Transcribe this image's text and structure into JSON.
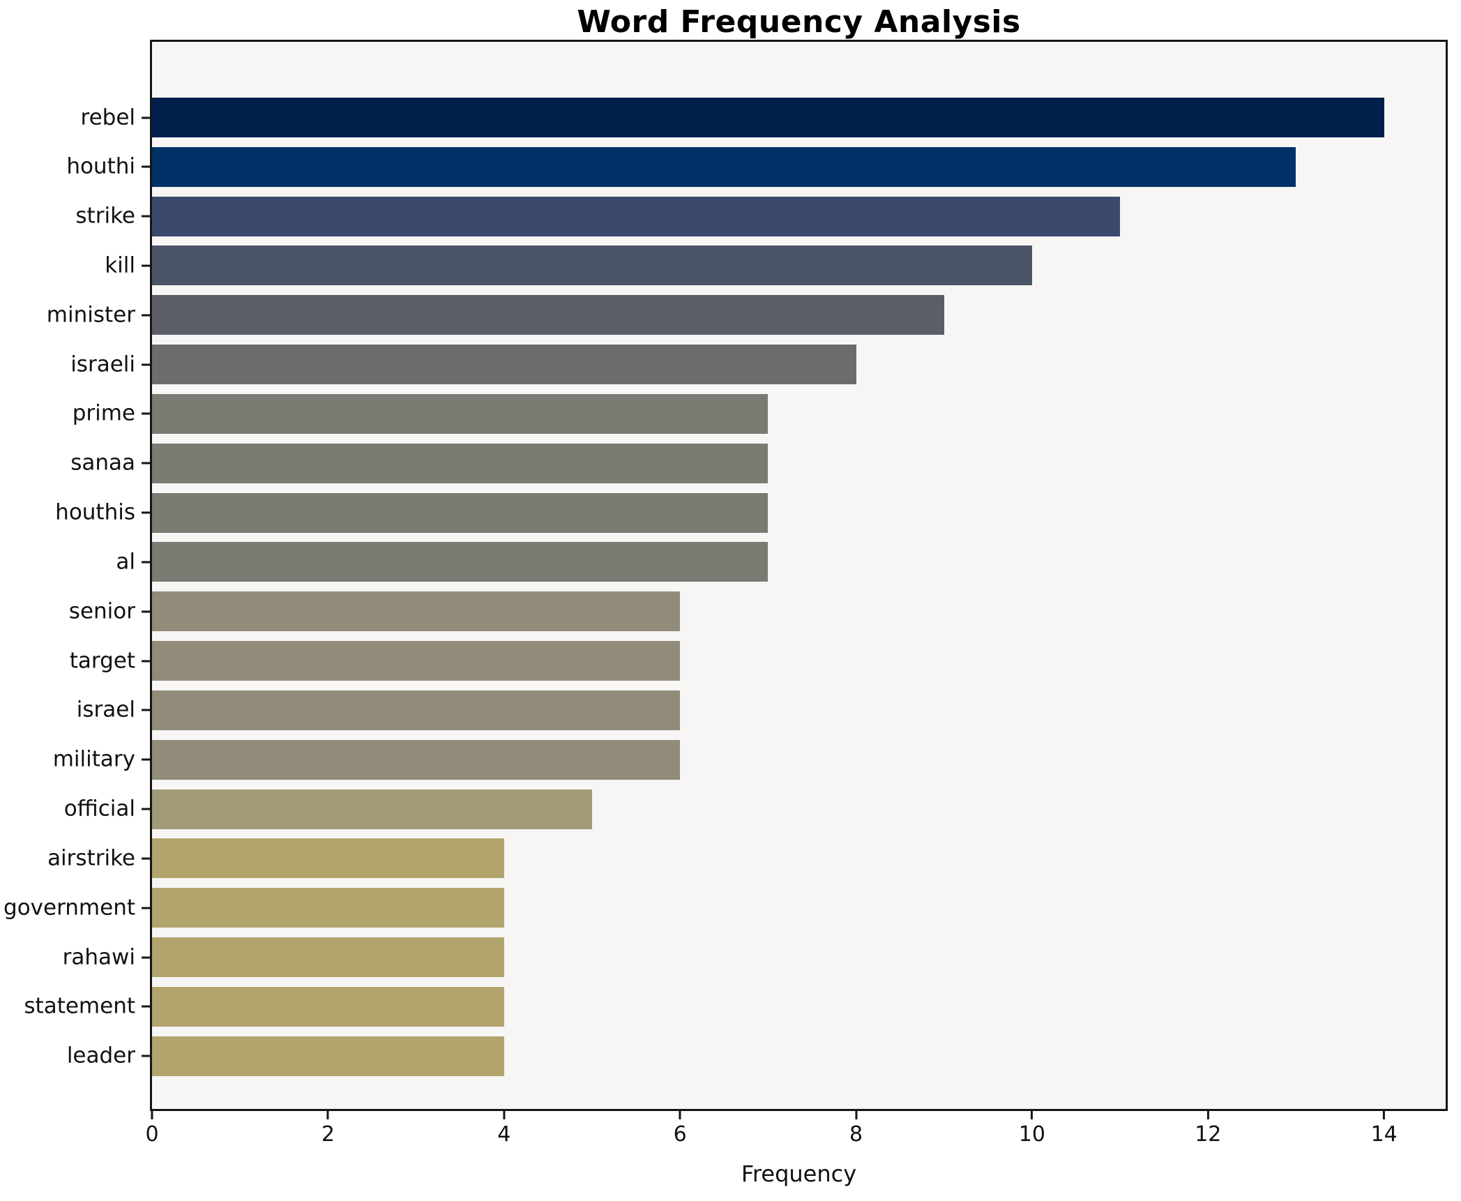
{
  "chart_data": {
    "type": "bar",
    "orientation": "horizontal",
    "title": "Word Frequency Analysis",
    "xlabel": "Frequency",
    "ylabel": "",
    "categories": [
      "rebel",
      "houthi",
      "strike",
      "kill",
      "minister",
      "israeli",
      "prime",
      "sanaa",
      "houthis",
      "al",
      "senior",
      "target",
      "israel",
      "military",
      "official",
      "airstrike",
      "government",
      "rahawi",
      "statement",
      "leader"
    ],
    "values": [
      14,
      13,
      11,
      10,
      9,
      8,
      7,
      7,
      7,
      7,
      6,
      6,
      6,
      6,
      5,
      4,
      4,
      4,
      4,
      4
    ],
    "bar_colors": [
      "#011f4a",
      "#003268",
      "#3a486c",
      "#4c5468",
      "#5b5e67",
      "#6b6c6b",
      "#7b7b73",
      "#7b7b73",
      "#7b7b73",
      "#7b7b73",
      "#918c7a",
      "#918c7a",
      "#918c7a",
      "#918c7a",
      "#a19a77",
      "#b1a56d",
      "#b1a56d",
      "#b1a56d",
      "#b1a56d",
      "#b1a56d"
    ],
    "xticks": [
      0,
      2,
      4,
      6,
      8,
      10,
      12,
      14
    ],
    "xlim": [
      0,
      14.7
    ],
    "grid": false,
    "legend": "none",
    "plot_background": "#f7f6f5",
    "figure_background": "#ffffff",
    "spine_color": "#151515"
  }
}
